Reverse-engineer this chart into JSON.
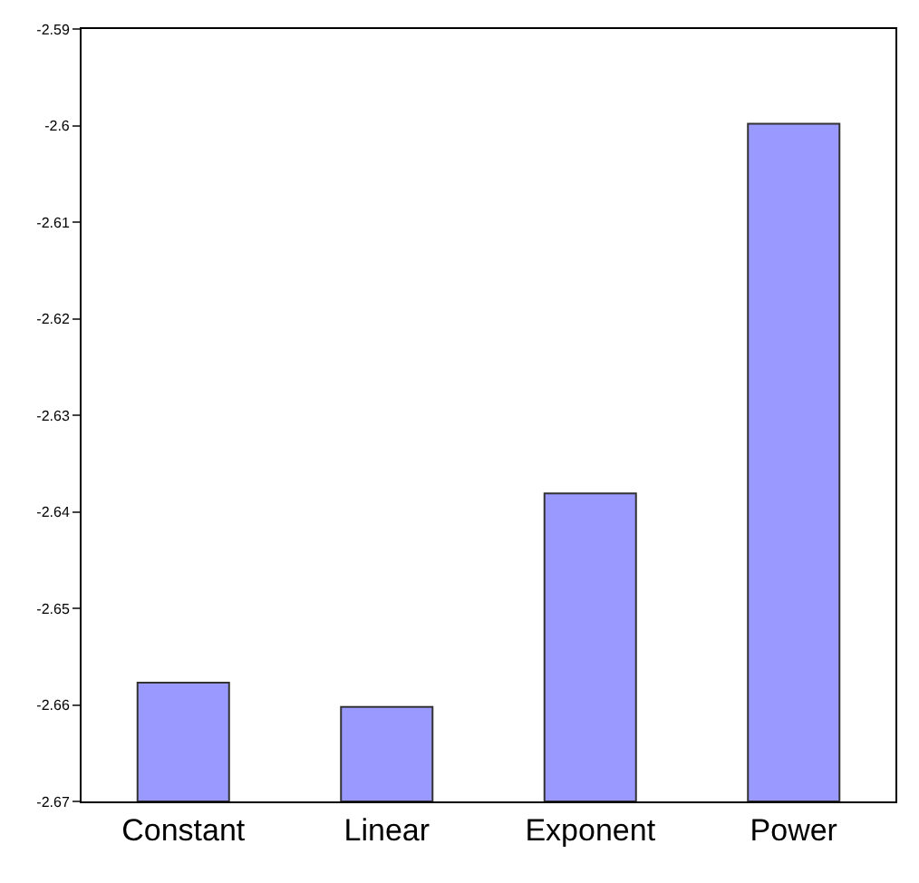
{
  "chart_data": {
    "type": "bar",
    "categories": [
      "Constant",
      "Linear",
      "Exponent",
      "Power"
    ],
    "base": [
      -2.67,
      -2.67,
      -2.67,
      -2.67
    ],
    "values": [
      0.0123,
      0.0098,
      0.0319,
      0.0702
    ],
    "color": "#9999ff",
    "ylim": [
      -2.67,
      -2.59
    ],
    "yticks": [
      -2.67,
      -2.66,
      -2.65,
      -2.64,
      -2.63,
      -2.62,
      -2.61,
      -2.6,
      -2.59
    ],
    "grid": false,
    "legend": false
  }
}
